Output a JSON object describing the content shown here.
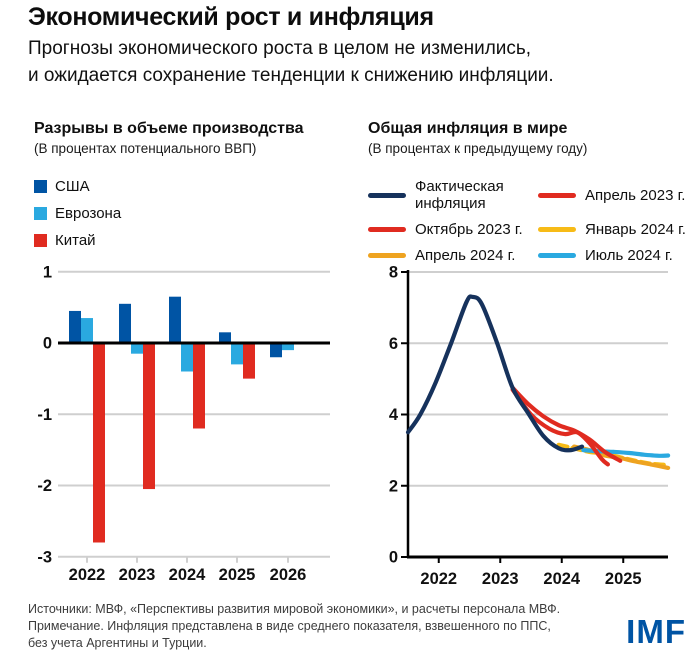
{
  "header": {
    "title": "Экономический рост и инфляция",
    "subtitle_lines": [
      "Прогнозы экономического роста в целом не изменились,",
      "и ожидается сохранение тенденции к снижению инфляции."
    ]
  },
  "colors": {
    "text": "#101010",
    "imf_blue": "#0054a4"
  },
  "chart_data": [
    {
      "type": "bar",
      "title": "Разрывы в объеме производства",
      "subtitle": "(В процентах потенциального ВВП)",
      "categories": [
        "2022",
        "2023",
        "2024",
        "2025",
        "2026"
      ],
      "series": [
        {
          "key": "usa",
          "name": "США",
          "color": "#0054a4",
          "values": [
            0.45,
            0.55,
            0.65,
            0.15,
            -0.2
          ]
        },
        {
          "key": "eurozone",
          "name": "Еврозона",
          "color": "#2aa9e0",
          "values": [
            0.35,
            -0.15,
            -0.4,
            -0.3,
            -0.1
          ]
        },
        {
          "key": "china",
          "name": "Китай",
          "color": "#e02b20",
          "values": [
            -2.8,
            -2.05,
            -1.2,
            -0.5,
            null
          ]
        }
      ],
      "ylim": [
        -3,
        1
      ],
      "yticks": [
        1,
        0,
        -1,
        -2,
        -3
      ],
      "grid_color": "#cfcfcf",
      "axis_color": "#000000",
      "legend_position": "top-left"
    },
    {
      "type": "line",
      "title": "Общая инфляция в мире",
      "subtitle": "(В процентах к предыдущему году)",
      "xlim": [
        2021.5,
        2025.75
      ],
      "ylim": [
        0,
        8
      ],
      "yticks": [
        8,
        6,
        4,
        2,
        0
      ],
      "xticks": [
        2022,
        2023,
        2024,
        2025
      ],
      "grid_color": "#cfcfcf",
      "axis_color": "#000000",
      "legend_position": "top",
      "series": [
        {
          "key": "jan-2024",
          "name": "Январь 2024 г.",
          "color": "#f7bb17",
          "dash": true,
          "x": [
            2023.95,
            2024.2,
            2024.45,
            2024.7,
            2024.95,
            2025.2,
            2025.45,
            2025.73
          ],
          "y": [
            3.15,
            3.05,
            2.95,
            2.9,
            2.8,
            2.7,
            2.62,
            2.58
          ]
        },
        {
          "key": "apr-2024",
          "name": "Апрель 2024 г.",
          "color": "#eea320",
          "dash": false,
          "x": [
            2024.2,
            2024.45,
            2024.7,
            2024.95,
            2025.2,
            2025.45,
            2025.73
          ],
          "y": [
            3.1,
            3.0,
            2.85,
            2.78,
            2.68,
            2.6,
            2.5
          ]
        },
        {
          "key": "jul-2024",
          "name": "Июль 2024 г.",
          "color": "#2aa9e0",
          "dash": false,
          "x": [
            2024.35,
            2024.6,
            2024.85,
            2025.1,
            2025.35,
            2025.6,
            2025.73
          ],
          "y": [
            3.0,
            2.97,
            2.95,
            2.92,
            2.87,
            2.84,
            2.85
          ]
        },
        {
          "key": "oct-2023",
          "name": "Октябрь 2023 г.",
          "color": "#e02b20",
          "dash": false,
          "x": [
            2023.2,
            2023.45,
            2023.7,
            2023.95,
            2024.2,
            2024.45,
            2024.7,
            2024.95
          ],
          "y": [
            4.75,
            4.3,
            3.95,
            3.7,
            3.55,
            3.3,
            2.95,
            2.7
          ]
        },
        {
          "key": "apr-2023",
          "name": "Апрель 2023 г.",
          "color": "#e02b20",
          "dash": false,
          "x": [
            2023.2,
            2023.5,
            2023.8,
            2024.05,
            2024.25,
            2024.45,
            2024.65,
            2024.75
          ],
          "y": [
            4.7,
            4.0,
            3.6,
            3.45,
            3.5,
            3.2,
            2.75,
            2.6
          ]
        },
        {
          "key": "actual-inflation",
          "name": "Фактическая инфляция",
          "color": "#16325c",
          "dash": false,
          "x": [
            2021.5,
            2021.7,
            2021.95,
            2022.2,
            2022.45,
            2022.55,
            2022.7,
            2022.95,
            2023.2,
            2023.45,
            2023.7,
            2023.95,
            2024.15,
            2024.33
          ],
          "y": [
            3.5,
            4.0,
            4.9,
            6.0,
            7.15,
            7.3,
            7.1,
            6.0,
            4.75,
            4.05,
            3.4,
            3.05,
            3.0,
            3.1
          ]
        }
      ],
      "legend_rows": [
        [
          5,
          4
        ],
        [
          3,
          0
        ],
        [
          1,
          2
        ]
      ]
    }
  ],
  "footer": {
    "lines": [
      "Источники: МВФ, «Перспективы развития мировой экономики», и расчеты персонала МВФ.",
      "Примечание. Инфляция представлена в виде среднего показателя, взвешенного по ППС,",
      "без учета Аргентины и Турции."
    ],
    "logo": "IMF"
  }
}
